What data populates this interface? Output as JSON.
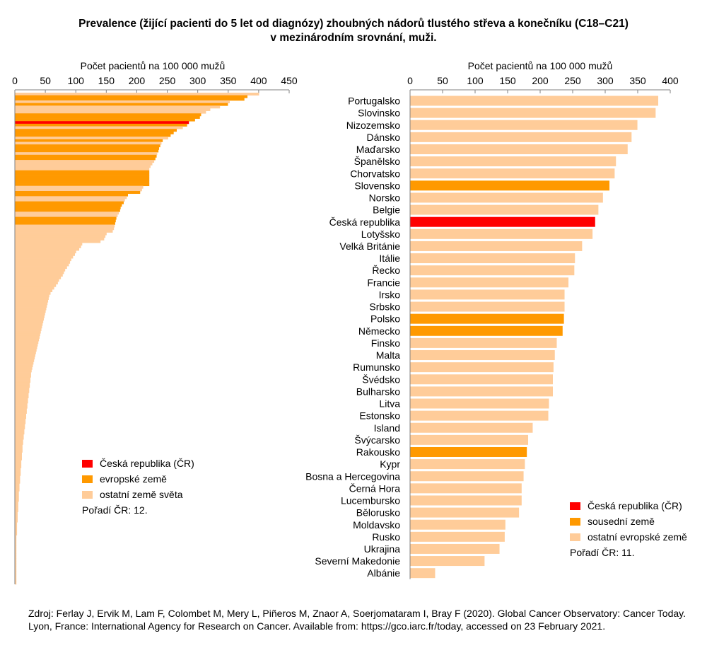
{
  "title": {
    "line1": "Prevalence (žijící pacienti do 5 let od diagnózy) zhoubných nádorů tlustého střeva a konečníku (C18–C21)",
    "line2": "v mezinárodním srovnání, muži."
  },
  "colors": {
    "cz": "#ff0000",
    "accent": "#ff9900",
    "other": "#ffcc99"
  },
  "chart_data": [
    {
      "type": "bar",
      "orientation": "horizontal",
      "xlabel": "Počet pacientů na 100 000 mužů",
      "xlim": [
        0,
        450
      ],
      "xticks": [
        "0",
        "50",
        "100",
        "150",
        "200",
        "250",
        "300",
        "350",
        "400",
        "450"
      ],
      "grid": false,
      "legend_position": "bottom-left",
      "legend": [
        {
          "label": "Česká republika (ČR)",
          "group": "cz"
        },
        {
          "label": "evropské země",
          "group": "europe"
        },
        {
          "label": "ostatní země světa",
          "group": "other"
        }
      ],
      "rank_note": "Pořadí ČR: 12.",
      "groups": [
        "other",
        "europe",
        "europe",
        "other",
        "europe",
        "other",
        "other",
        "other",
        "europe",
        "europe",
        "europe",
        "cz",
        "europe",
        "other",
        "europe",
        "europe",
        "europe",
        "other",
        "europe",
        "other",
        "europe",
        "europe",
        "europe",
        "other",
        "europe",
        "europe",
        "other",
        "other",
        "other",
        "other",
        "europe",
        "europe",
        "europe",
        "europe",
        "europe",
        "europe",
        "other",
        "other",
        "europe",
        "europe",
        "other",
        "other",
        "europe",
        "europe",
        "europe",
        "europe",
        "other",
        "other",
        "europe",
        "europe",
        "europe",
        "other",
        "other",
        "other",
        "other",
        "other",
        "other",
        "other",
        "other",
        "other",
        "other",
        "other",
        "other",
        "other",
        "other",
        "other",
        "other",
        "other",
        "other",
        "other",
        "other",
        "other",
        "other",
        "other",
        "other",
        "other",
        "other",
        "other",
        "other",
        "other",
        "other",
        "other",
        "other",
        "other",
        "other",
        "other",
        "other",
        "other",
        "other",
        "other",
        "other",
        "other",
        "other",
        "other",
        "other",
        "other",
        "other",
        "other",
        "other",
        "other",
        "other",
        "other",
        "other",
        "other",
        "other",
        "other",
        "other",
        "other",
        "other",
        "other",
        "other",
        "other",
        "other",
        "other",
        "other",
        "other",
        "other",
        "other",
        "other",
        "other",
        "other",
        "other",
        "other",
        "other",
        "other",
        "other",
        "other",
        "other",
        "other",
        "other",
        "other",
        "other",
        "other",
        "other",
        "other",
        "other",
        "other",
        "other",
        "other",
        "other",
        "other",
        "other",
        "other",
        "other",
        "other",
        "other",
        "other",
        "other",
        "other",
        "other",
        "other",
        "other",
        "other",
        "other",
        "other",
        "other",
        "other",
        "other",
        "other",
        "other",
        "other",
        "other",
        "other",
        "other",
        "other",
        "other",
        "other",
        "other",
        "other",
        "other",
        "other",
        "other",
        "other",
        "other",
        "other",
        "other",
        "other",
        "other",
        "other",
        "other",
        "other"
      ],
      "values": [
        400,
        381,
        376,
        352,
        349,
        336,
        320,
        313,
        305,
        303,
        295,
        285,
        282,
        275,
        265,
        260,
        255,
        251,
        242,
        240,
        238,
        236,
        235,
        233,
        232,
        230,
        228,
        225,
        222,
        220,
        220,
        220,
        220,
        220,
        220,
        220,
        210,
        208,
        205,
        185,
        183,
        180,
        178,
        175,
        173,
        172,
        170,
        168,
        166,
        165,
        164,
        163,
        162,
        160,
        150,
        148,
        146,
        140,
        110,
        108,
        105,
        100,
        98,
        95,
        92,
        90,
        88,
        85,
        82,
        80,
        78,
        75,
        72,
        70,
        67,
        64,
        61,
        58,
        56,
        55,
        54,
        53,
        52,
        51,
        50,
        49,
        48,
        47,
        46,
        45,
        44,
        43,
        42,
        41,
        40,
        39,
        38,
        37,
        36,
        35,
        34,
        33,
        32,
        31,
        30,
        29,
        28,
        27,
        26,
        26,
        25,
        25,
        24,
        24,
        23,
        23,
        22,
        22,
        21,
        21,
        20,
        20,
        19,
        19,
        18,
        18,
        17,
        17,
        16,
        16,
        15,
        15,
        14,
        14,
        13,
        13,
        12,
        12,
        12,
        11,
        11,
        11,
        10,
        10,
        10,
        9,
        9,
        9,
        8,
        8,
        8,
        7,
        7,
        7,
        6,
        6,
        6,
        6,
        5,
        5,
        5,
        5,
        4,
        4,
        4,
        4,
        3,
        3,
        3,
        3,
        3,
        2,
        2,
        2,
        2,
        2,
        2,
        2,
        2,
        2,
        2,
        2,
        2,
        2,
        2,
        2,
        2,
        2,
        2,
        2
      ]
    },
    {
      "type": "bar",
      "orientation": "horizontal",
      "xlabel": "Počet pacientů na 100 000 mužů",
      "xlim": [
        0,
        400
      ],
      "xticks": [
        "0",
        "50",
        "100",
        "150",
        "200",
        "250",
        "300",
        "350",
        "400"
      ],
      "grid": false,
      "legend_position": "bottom-right",
      "legend": [
        {
          "label": "Česká republika (ČR)",
          "group": "cz"
        },
        {
          "label": "sousední země",
          "group": "neighbour"
        },
        {
          "label": "ostatní evropské země",
          "group": "other"
        }
      ],
      "rank_note": "Pořadí ČR: 11.",
      "categories": [
        "Portugalsko",
        "Slovinsko",
        "Nizozemsko",
        "Dánsko",
        "Maďarsko",
        "Španělsko",
        "Chorvatsko",
        "Slovensko",
        "Norsko",
        "Belgie",
        "Česká republika",
        "Lotyšsko",
        "Velká Británie",
        "Itálie",
        "Řecko",
        "Francie",
        "Irsko",
        "Srbsko",
        "Polsko",
        "Německo",
        "Finsko",
        "Malta",
        "Rumunsko",
        "Švédsko",
        "Bulharsko",
        "Litva",
        "Estonsko",
        "Island",
        "Švýcarsko",
        "Rakousko",
        "Kypr",
        "Bosna a Hercegovina",
        "Černá Hora",
        "Lucembursko",
        "Bělorusko",
        "Moldavsko",
        "Rusko",
        "Ukrajina",
        "Severní Makedonie",
        "Albánie"
      ],
      "values": [
        381,
        377,
        349,
        340,
        334,
        316,
        314,
        306,
        296,
        289,
        284,
        280,
        264,
        253,
        252,
        243,
        237,
        237,
        236,
        234,
        225,
        222,
        220,
        219,
        219,
        213,
        212,
        188,
        181,
        179,
        176,
        174,
        171,
        171,
        167,
        146,
        145,
        137,
        114,
        38
      ],
      "groups": [
        "other",
        "other",
        "other",
        "other",
        "other",
        "other",
        "other",
        "neighbour",
        "other",
        "other",
        "cz",
        "other",
        "other",
        "other",
        "other",
        "other",
        "other",
        "other",
        "neighbour",
        "neighbour",
        "other",
        "other",
        "other",
        "other",
        "other",
        "other",
        "other",
        "other",
        "other",
        "neighbour",
        "other",
        "other",
        "other",
        "other",
        "other",
        "other",
        "other",
        "other",
        "other",
        "other"
      ]
    }
  ],
  "source": "Zdroj: Ferlay J, Ervik M, Lam F, Colombet M, Mery L, Piñeros M, Znaor A, Soerjomataram I, Bray F (2020). Global Cancer Observatory: Cancer Today. Lyon, France: International Agency for Research on Cancer. Available from: https://gco.iarc.fr/today, accessed on 23 February 2021."
}
